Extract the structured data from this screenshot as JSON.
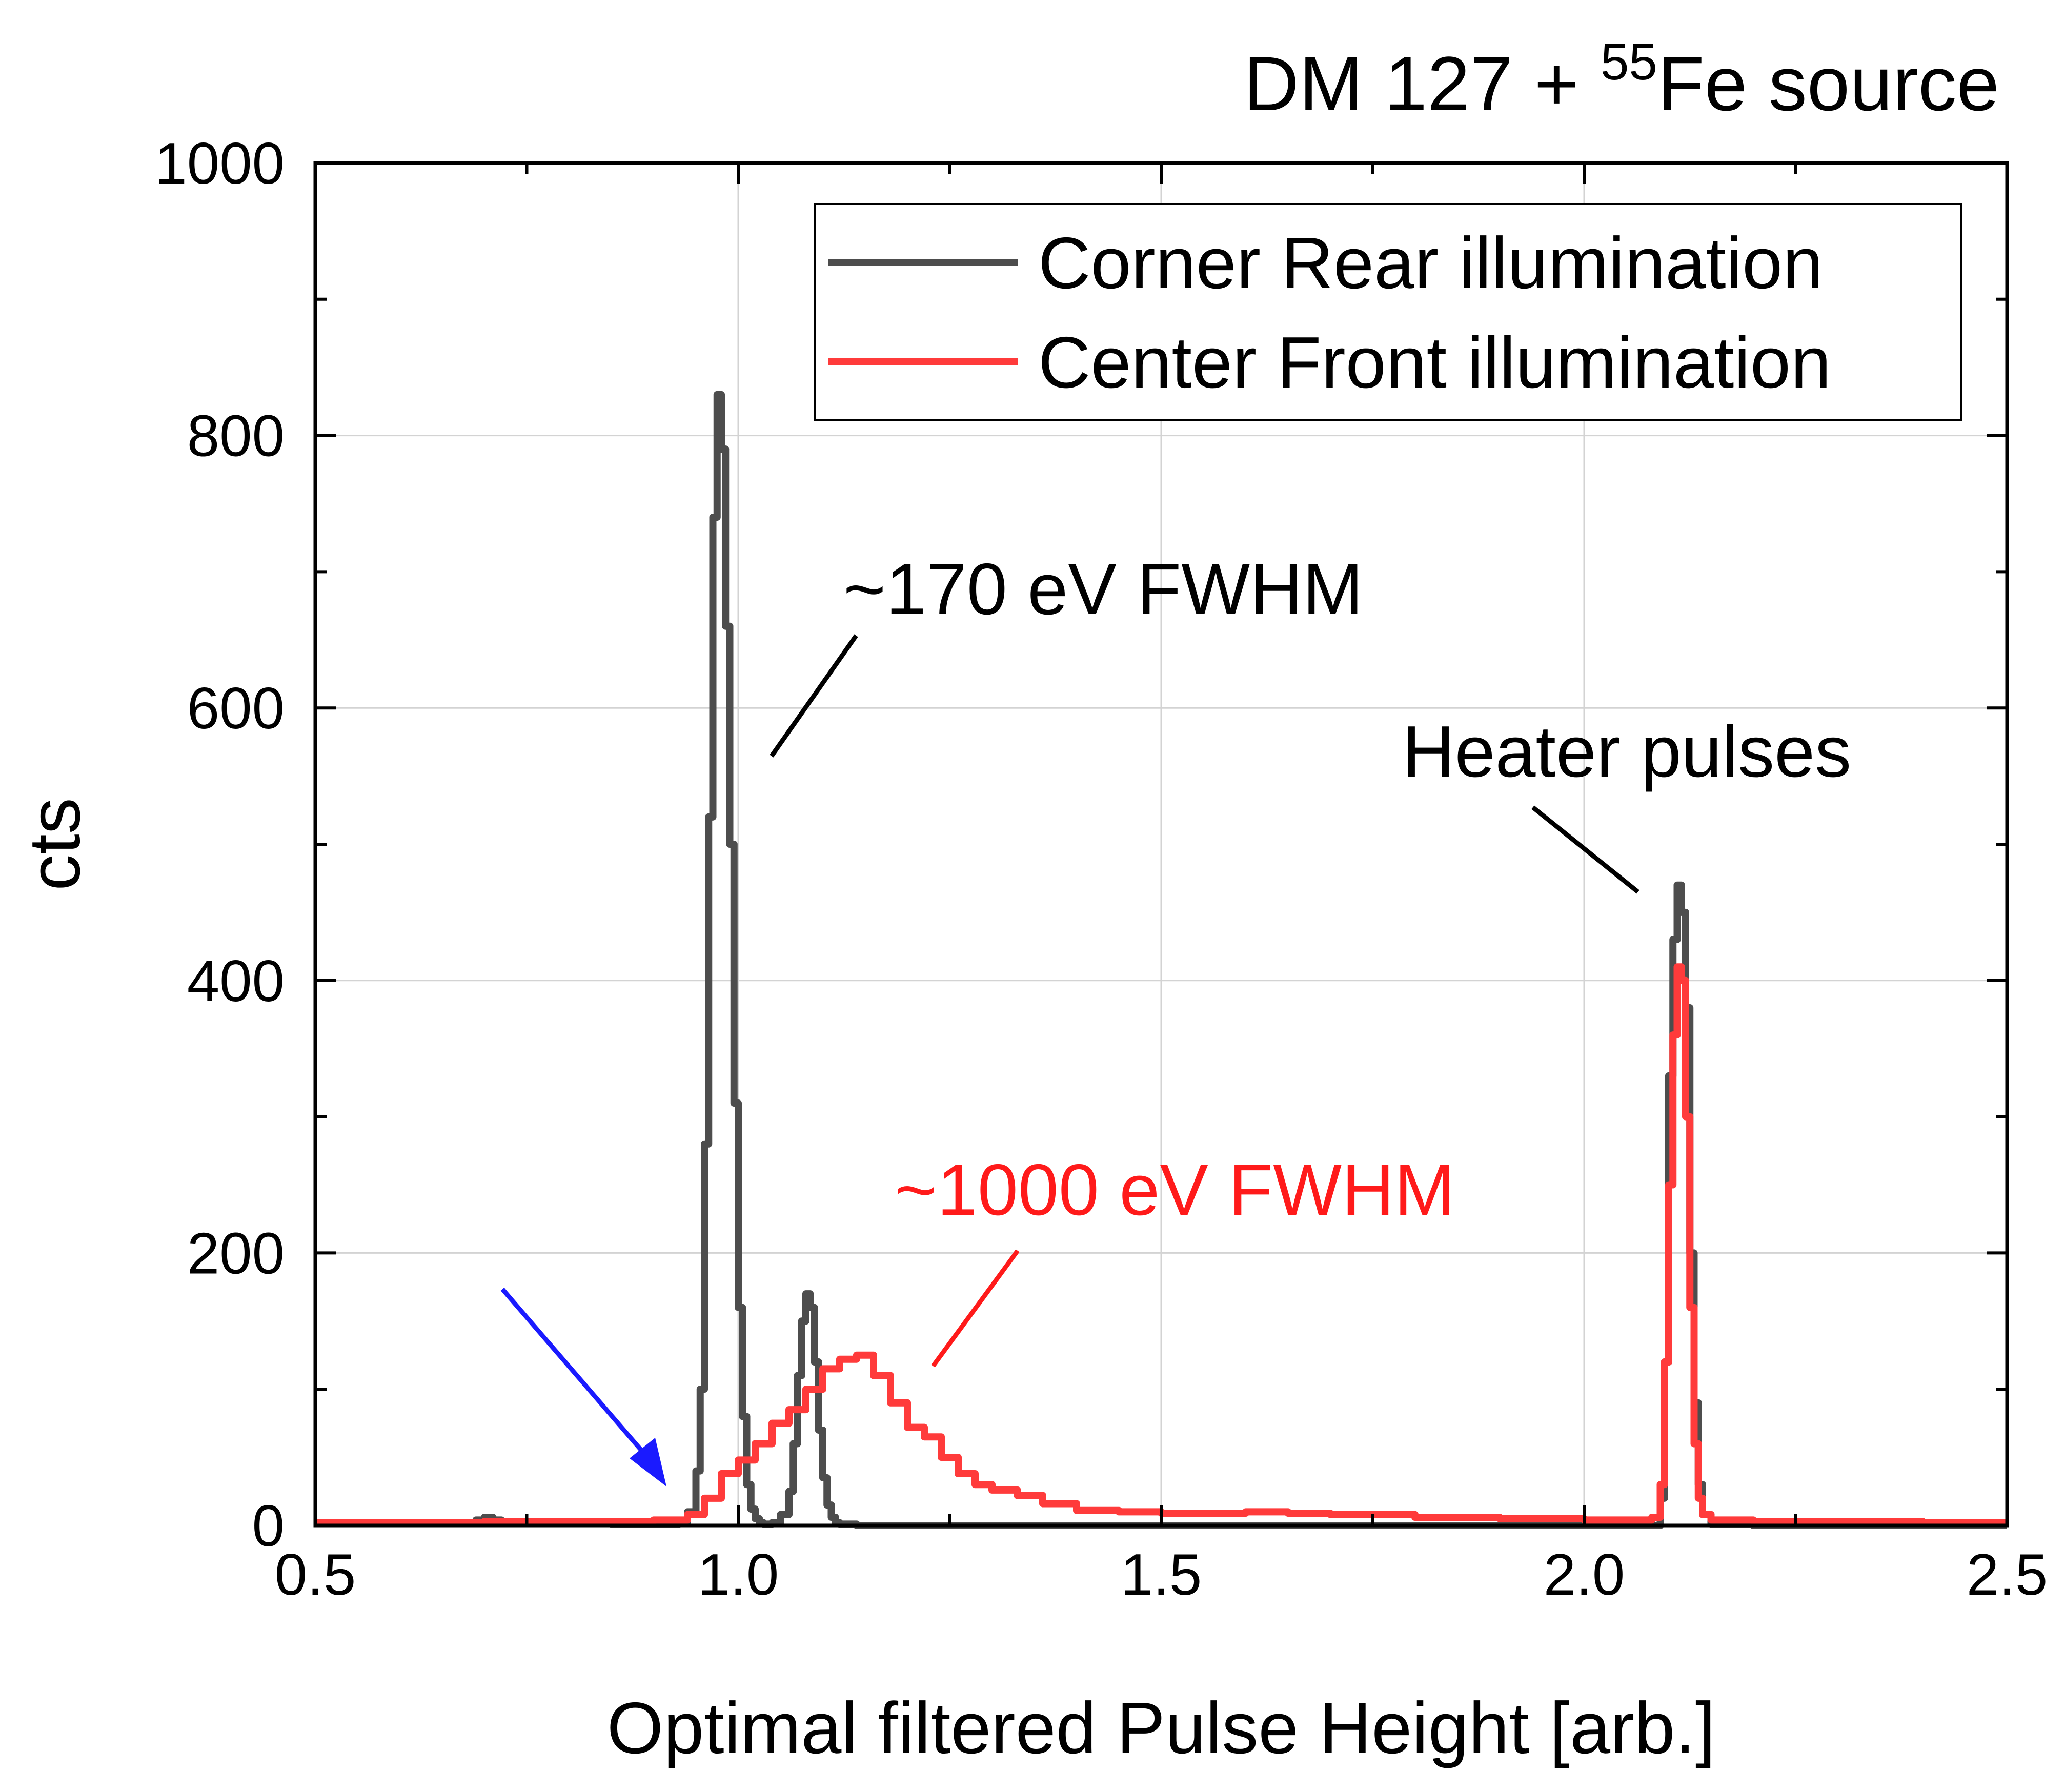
{
  "chart_data": {
    "type": "line",
    "title_main": "DM 127 + ",
    "title_superscript": "55",
    "title_suffix": "Fe source",
    "xlabel": "Optimal filtered Pulse Height [arb.]",
    "ylabel": "cts",
    "xlim": [
      0.5,
      2.5
    ],
    "ylim": [
      0,
      1000
    ],
    "xticks": [
      0.5,
      1.0,
      1.5,
      2.0,
      2.5
    ],
    "xtick_labels": [
      "0.5",
      "1.0",
      "1.5",
      "2.0",
      "2.5"
    ],
    "yticks": [
      0,
      200,
      400,
      600,
      800,
      1000
    ],
    "ytick_labels": [
      "0",
      "200",
      "400",
      "600",
      "800",
      "1000"
    ],
    "grid": true,
    "legend_position": "top-right",
    "series": [
      {
        "name": "Corner Rear illumination",
        "color": "#4d4d4d",
        "x": [
          0.5,
          0.68,
          0.69,
          0.7,
          0.71,
          0.72,
          0.85,
          0.93,
          0.94,
          0.95,
          0.955,
          0.96,
          0.965,
          0.97,
          0.975,
          0.98,
          0.985,
          0.99,
          0.995,
          1.0,
          1.005,
          1.01,
          1.015,
          1.02,
          1.025,
          1.03,
          1.04,
          1.05,
          1.06,
          1.065,
          1.07,
          1.075,
          1.08,
          1.085,
          1.09,
          1.095,
          1.1,
          1.105,
          1.11,
          1.115,
          1.12,
          1.13,
          1.14,
          1.2,
          1.3,
          1.4,
          1.6,
          1.8,
          2.0,
          2.08,
          2.09,
          2.095,
          2.1,
          2.105,
          2.11,
          2.115,
          2.12,
          2.125,
          2.13,
          2.135,
          2.14,
          2.15,
          2.2,
          2.5
        ],
        "y": [
          2,
          2,
          4,
          6,
          4,
          2,
          1,
          2,
          10,
          40,
          100,
          280,
          520,
          740,
          830,
          790,
          660,
          500,
          310,
          160,
          80,
          30,
          12,
          5,
          2,
          1,
          2,
          8,
          25,
          60,
          110,
          150,
          170,
          160,
          120,
          70,
          35,
          15,
          6,
          2,
          1,
          1,
          0,
          0,
          0,
          0,
          0,
          0,
          0,
          0,
          20,
          120,
          330,
          430,
          470,
          450,
          380,
          200,
          90,
          30,
          8,
          1,
          0,
          0
        ]
      },
      {
        "name": "Center Front illumination",
        "color": "#ff3b3b",
        "x": [
          0.5,
          0.6,
          0.7,
          0.8,
          0.9,
          0.94,
          0.96,
          0.98,
          1.0,
          1.02,
          1.04,
          1.06,
          1.08,
          1.1,
          1.12,
          1.14,
          1.16,
          1.18,
          1.2,
          1.22,
          1.24,
          1.26,
          1.28,
          1.3,
          1.33,
          1.36,
          1.4,
          1.45,
          1.5,
          1.55,
          1.6,
          1.65,
          1.7,
          1.8,
          1.9,
          2.0,
          2.05,
          2.08,
          2.09,
          2.095,
          2.1,
          2.105,
          2.11,
          2.115,
          2.12,
          2.125,
          2.13,
          2.135,
          2.14,
          2.15,
          2.2,
          2.3,
          2.4,
          2.5
        ],
        "y": [
          2,
          2,
          3,
          3,
          4,
          8,
          20,
          38,
          48,
          60,
          75,
          85,
          100,
          115,
          122,
          125,
          110,
          90,
          72,
          65,
          50,
          38,
          30,
          26,
          22,
          16,
          11,
          10,
          9,
          9,
          10,
          9,
          8,
          6,
          5,
          4,
          4,
          6,
          30,
          120,
          250,
          360,
          410,
          400,
          300,
          160,
          60,
          20,
          8,
          4,
          3,
          3,
          2,
          2
        ]
      }
    ],
    "annotations": [
      {
        "text": "~170 eV FWHM",
        "color": "#000000"
      },
      {
        "text": "~1000 eV FWHM",
        "color": "#ff1a1a"
      },
      {
        "text": "Heater pulses",
        "color": "#000000"
      }
    ]
  }
}
